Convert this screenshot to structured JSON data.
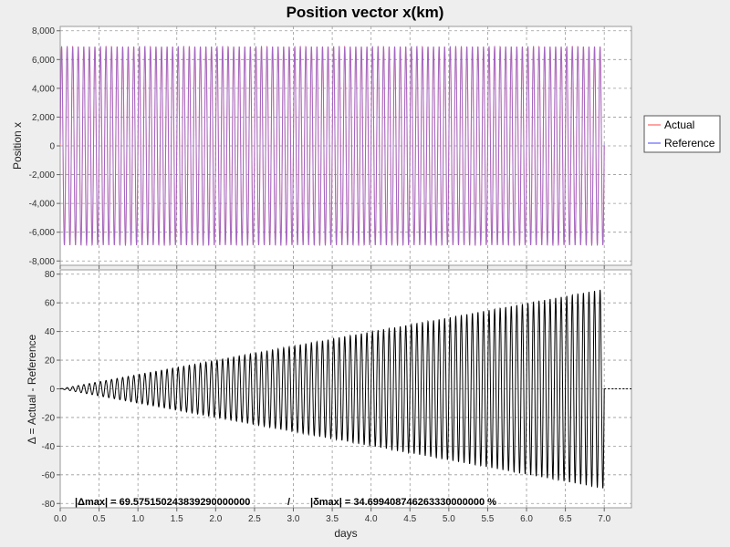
{
  "chart_data": {
    "title": "Position vector x(km)",
    "xlabel": "days",
    "xlim": [
      0.0,
      7.35
    ],
    "xticks": [
      "0.0",
      "0.5",
      "1.0",
      "1.5",
      "2.0",
      "2.5",
      "3.0",
      "3.5",
      "4.0",
      "4.5",
      "5.0",
      "5.5",
      "6.0",
      "6.5",
      "7.0"
    ],
    "grid": true,
    "legend_position": "right",
    "panels": [
      {
        "type": "line",
        "ylabel": "Position x",
        "ylim": [
          -8300,
          8300
        ],
        "yticks": [
          "8,000",
          "6,000",
          "4,000",
          "2,000",
          "0",
          "-2,000",
          "-4,000",
          "-6,000",
          "-8,000"
        ],
        "series": [
          {
            "name": "Actual",
            "color": "#ff6666",
            "amplitude_km": 6900,
            "cycles_per_day": 14.0,
            "x_range": [
              0.0,
              7.0
            ]
          },
          {
            "name": "Reference",
            "color": "#6666ff",
            "amplitude_km": 6900,
            "cycles_per_day": 14.0,
            "x_range": [
              0.0,
              7.0
            ]
          }
        ]
      },
      {
        "type": "line",
        "ylabel": "Δ = Actual - Reference",
        "ylim": [
          -83,
          83
        ],
        "yticks": [
          "80",
          "60",
          "40",
          "20",
          "0",
          "-20",
          "-40",
          "-60",
          "-80"
        ],
        "series": [
          {
            "name": "Δ",
            "color": "#000000",
            "envelope_start": 0.0,
            "envelope_end": 69.6,
            "cycles_per_day": 14.0,
            "x_range": [
              0.0,
              7.0
            ]
          }
        ],
        "annotations": {
          "delta_max": "|Δmax| = 69.575150243839290000000",
          "separator": "/",
          "rel_max": "|δmax| = 34.699408746263330000000 %"
        }
      }
    ]
  }
}
